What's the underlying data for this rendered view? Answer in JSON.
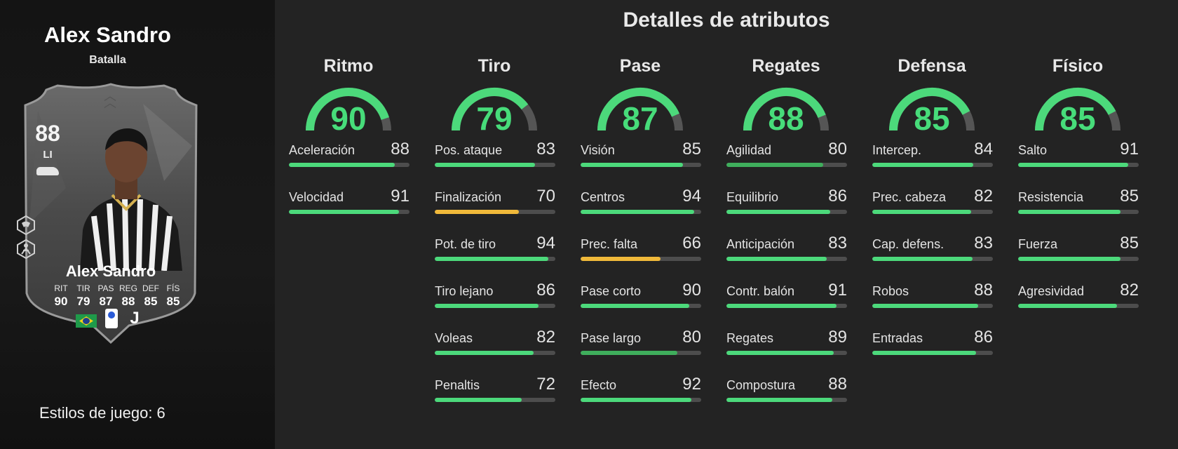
{
  "player": {
    "name": "Alex Sandro",
    "subtitle": "Batalla",
    "playstyles_label": "Estilos de juego: 6"
  },
  "card": {
    "rating": "88",
    "position": "LI",
    "name": "Alex Sandro",
    "stat_labels": [
      "RIT",
      "TIR",
      "PAS",
      "REG",
      "DEF",
      "FÍS"
    ],
    "stat_values": [
      "90",
      "79",
      "87",
      "88",
      "85",
      "85"
    ],
    "nation_icon": "brazil-flag-icon",
    "league_icon": "serie-a-icon",
    "club_icon": "juventus-icon"
  },
  "title": "Detalles de atributos",
  "colors": {
    "green": "#4cd97b",
    "yellow": "#f0b93a",
    "darkgreen": "#3fae5c",
    "track": "#4d4d4d",
    "gauge_value": "#47dc7a"
  },
  "categories": [
    {
      "name": "Ritmo",
      "value": 90,
      "stats": [
        {
          "label": "Aceleración",
          "value": 88,
          "color": "#4cd97b"
        },
        {
          "label": "Velocidad",
          "value": 91,
          "color": "#4cd97b"
        }
      ]
    },
    {
      "name": "Tiro",
      "value": 79,
      "stats": [
        {
          "label": "Pos. ataque",
          "value": 83,
          "color": "#4cd97b"
        },
        {
          "label": "Finalización",
          "value": 70,
          "color": "#f0b93a"
        },
        {
          "label": "Pot. de tiro",
          "value": 94,
          "color": "#4cd97b"
        },
        {
          "label": "Tiro lejano",
          "value": 86,
          "color": "#4cd97b"
        },
        {
          "label": "Voleas",
          "value": 82,
          "color": "#4cd97b"
        },
        {
          "label": "Penaltis",
          "value": 72,
          "color": "#4cd97b"
        }
      ]
    },
    {
      "name": "Pase",
      "value": 87,
      "stats": [
        {
          "label": "Visión",
          "value": 85,
          "color": "#4cd97b"
        },
        {
          "label": "Centros",
          "value": 94,
          "color": "#4cd97b"
        },
        {
          "label": "Prec. falta",
          "value": 66,
          "color": "#f0b93a"
        },
        {
          "label": "Pase corto",
          "value": 90,
          "color": "#4cd97b"
        },
        {
          "label": "Pase largo",
          "value": 80,
          "color": "#3fae5c"
        },
        {
          "label": "Efecto",
          "value": 92,
          "color": "#4cd97b"
        }
      ]
    },
    {
      "name": "Regates",
      "value": 88,
      "stats": [
        {
          "label": "Agilidad",
          "value": 80,
          "color": "#3fae5c"
        },
        {
          "label": "Equilibrio",
          "value": 86,
          "color": "#4cd97b"
        },
        {
          "label": "Anticipación",
          "value": 83,
          "color": "#4cd97b"
        },
        {
          "label": "Contr. balón",
          "value": 91,
          "color": "#4cd97b"
        },
        {
          "label": "Regates",
          "value": 89,
          "color": "#4cd97b"
        },
        {
          "label": "Compostura",
          "value": 88,
          "color": "#4cd97b"
        }
      ]
    },
    {
      "name": "Defensa",
      "value": 85,
      "stats": [
        {
          "label": "Intercep.",
          "value": 84,
          "color": "#4cd97b"
        },
        {
          "label": "Prec. cabeza",
          "value": 82,
          "color": "#4cd97b"
        },
        {
          "label": "Cap. defens.",
          "value": 83,
          "color": "#4cd97b"
        },
        {
          "label": "Robos",
          "value": 88,
          "color": "#4cd97b"
        },
        {
          "label": "Entradas",
          "value": 86,
          "color": "#4cd97b"
        }
      ]
    },
    {
      "name": "Físico",
      "value": 85,
      "stats": [
        {
          "label": "Salto",
          "value": 91,
          "color": "#4cd97b"
        },
        {
          "label": "Resistencia",
          "value": 85,
          "color": "#4cd97b"
        },
        {
          "label": "Fuerza",
          "value": 85,
          "color": "#4cd97b"
        },
        {
          "label": "Agresividad",
          "value": 82,
          "color": "#4cd97b"
        }
      ]
    }
  ]
}
